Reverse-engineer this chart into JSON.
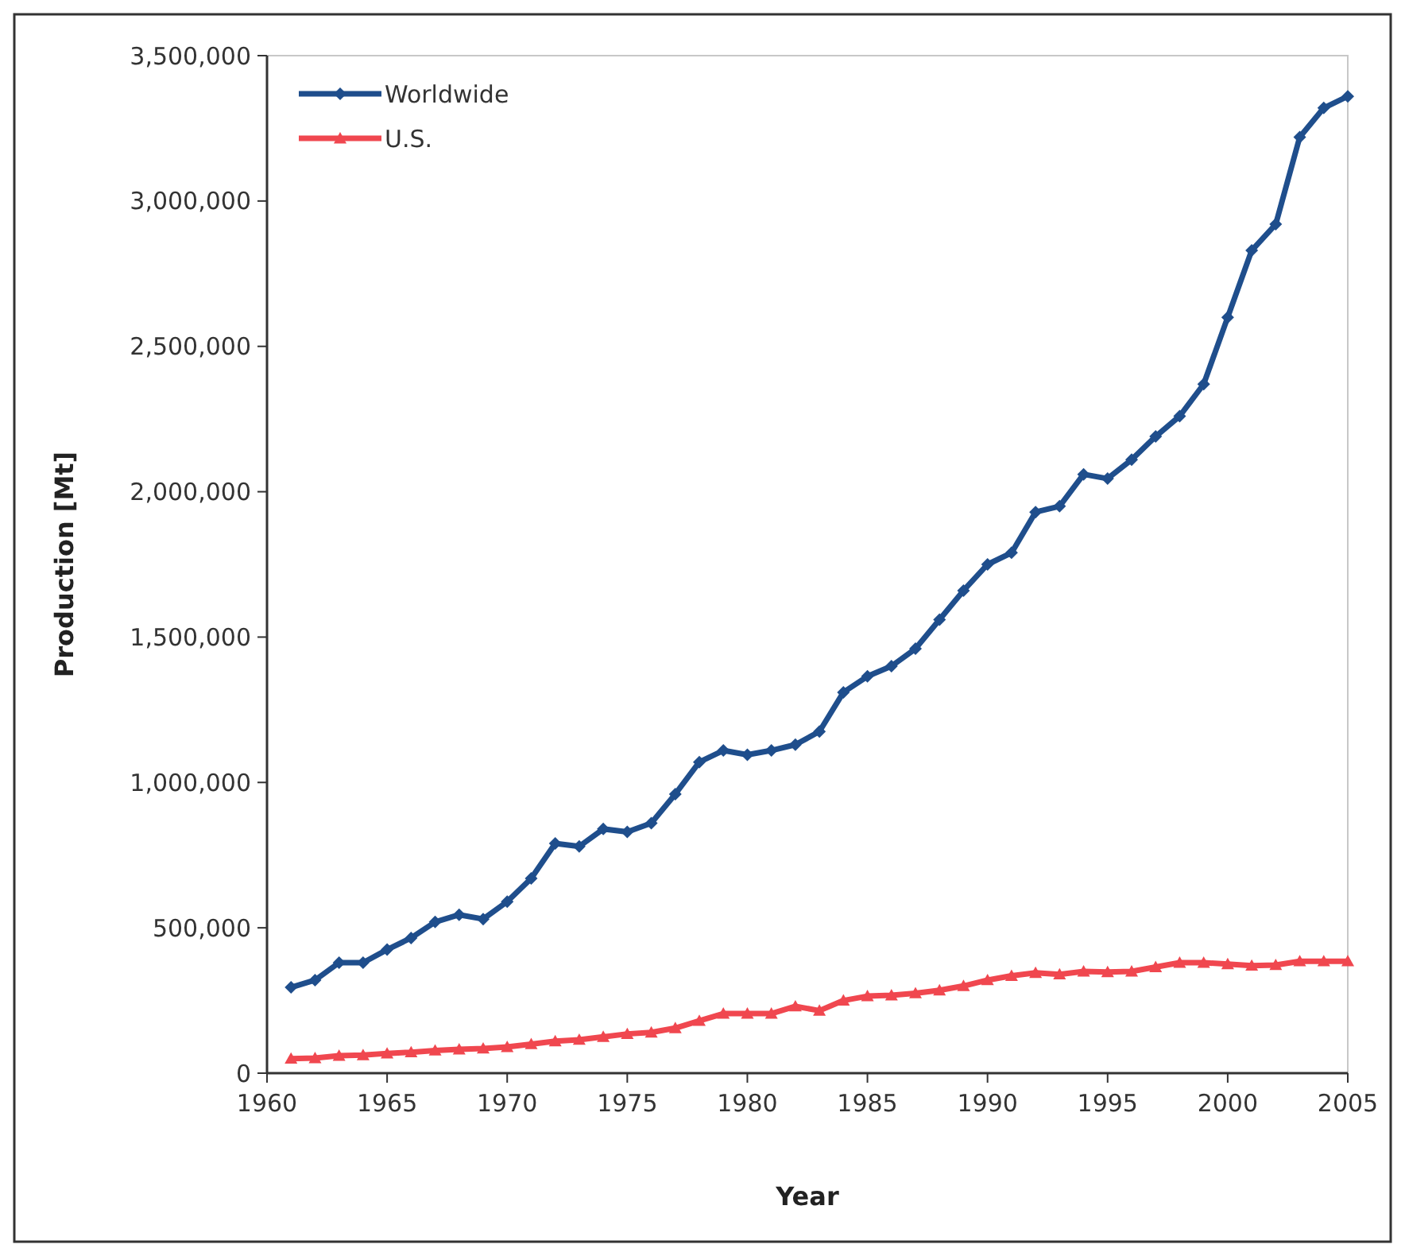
{
  "chart_data": {
    "type": "line",
    "xlabel": "Year",
    "ylabel": "Production [Mt]",
    "x": [
      1961,
      1962,
      1963,
      1964,
      1965,
      1966,
      1967,
      1968,
      1969,
      1970,
      1971,
      1972,
      1973,
      1974,
      1975,
      1976,
      1977,
      1978,
      1979,
      1980,
      1981,
      1982,
      1983,
      1984,
      1985,
      1986,
      1987,
      1988,
      1989,
      1990,
      1991,
      1992,
      1993,
      1994,
      1995,
      1996,
      1997,
      1998,
      1999,
      2000,
      2001,
      2002,
      2003,
      2004,
      2005
    ],
    "series": [
      {
        "name": "Worldwide",
        "color": "#1f4e8c",
        "marker": "diamond",
        "values": [
          295000,
          320000,
          380000,
          380000,
          425000,
          465000,
          520000,
          545000,
          530000,
          590000,
          670000,
          790000,
          780000,
          840000,
          830000,
          860000,
          960000,
          1070000,
          1110000,
          1095000,
          1110000,
          1130000,
          1175000,
          1310000,
          1365000,
          1400000,
          1460000,
          1560000,
          1660000,
          1750000,
          1790000,
          1930000,
          1950000,
          2060000,
          2045000,
          2110000,
          2190000,
          2260000,
          2370000,
          2600000,
          2830000,
          2920000,
          3220000,
          3320000,
          3360000
        ]
      },
      {
        "name": "U.S.",
        "color": "#f0474f",
        "marker": "triangle",
        "values": [
          50000,
          52000,
          60000,
          62000,
          68000,
          72000,
          78000,
          82000,
          85000,
          90000,
          100000,
          110000,
          115000,
          125000,
          135000,
          140000,
          155000,
          180000,
          205000,
          205000,
          205000,
          230000,
          215000,
          250000,
          265000,
          268000,
          275000,
          285000,
          300000,
          320000,
          335000,
          345000,
          340000,
          350000,
          348000,
          350000,
          365000,
          380000,
          380000,
          375000,
          370000,
          372000,
          385000,
          385000,
          385000
        ]
      }
    ],
    "xlim": [
      1960,
      2005
    ],
    "xticks": [
      1960,
      1965,
      1970,
      1975,
      1980,
      1985,
      1990,
      1995,
      2000,
      2005
    ],
    "ylim": [
      0,
      3500000
    ],
    "yticks": [
      {
        "value": 0,
        "label": "0"
      },
      {
        "value": 500000,
        "label": "500,000"
      },
      {
        "value": 1000000,
        "label": "1,000,000"
      },
      {
        "value": 1500000,
        "label": "1,500,000"
      },
      {
        "value": 2000000,
        "label": "2,000,000"
      },
      {
        "value": 2500000,
        "label": "2,500,000"
      },
      {
        "value": 3000000,
        "label": "3,000,000"
      },
      {
        "value": 3500000,
        "label": "3,500,000"
      }
    ],
    "grid": false,
    "legend": "top left",
    "line_style": "solid"
  }
}
